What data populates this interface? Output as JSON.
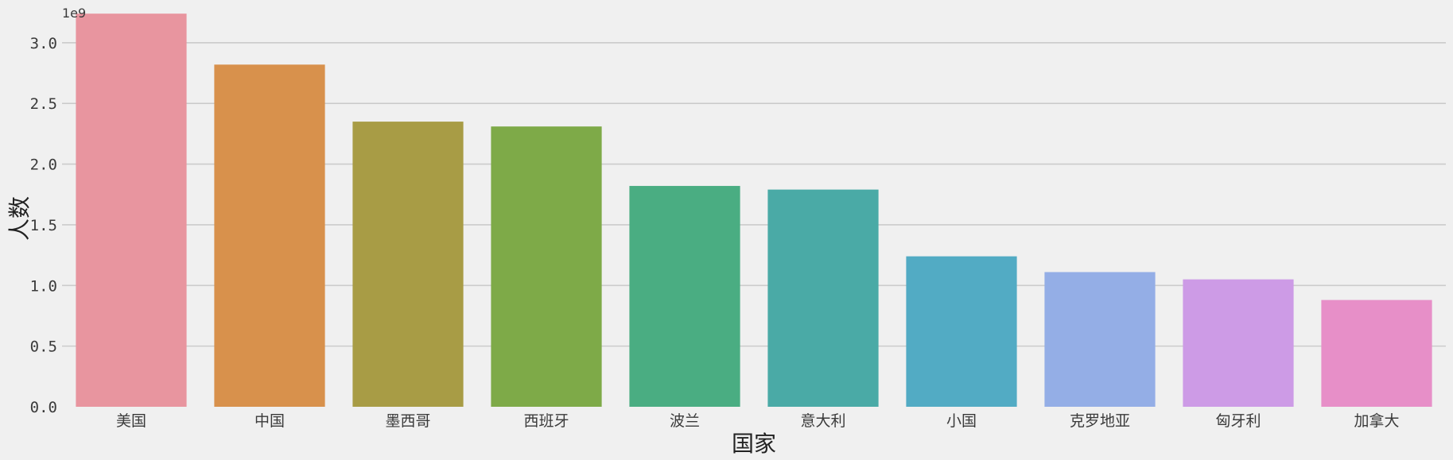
{
  "chart_data": {
    "type": "bar",
    "title": "",
    "xlabel": "国家",
    "ylabel": "人数",
    "offset_label": "1e9",
    "scale": 1000000000,
    "categories": [
      "美国",
      "中国",
      "墨西哥",
      "西班牙",
      "波兰",
      "意大利",
      "小国",
      "克罗地亚",
      "匈牙利",
      "加拿大"
    ],
    "values": [
      3240000000,
      2820000000,
      2350000000,
      2310000000,
      1820000000,
      1790000000,
      1240000000,
      1110000000,
      1050000000,
      880000000
    ],
    "colors": [
      "#e8959f",
      "#d8914c",
      "#a89c45",
      "#7eaa48",
      "#4aad82",
      "#4aaaa6",
      "#52abc4",
      "#94aee6",
      "#cd9be6",
      "#e78fc8"
    ],
    "ylim": [
      0,
      3300000000
    ],
    "yticks": [
      0.0,
      0.5,
      1.0,
      1.5,
      2.0,
      2.5,
      3.0
    ],
    "grid": true,
    "legend": "none"
  }
}
